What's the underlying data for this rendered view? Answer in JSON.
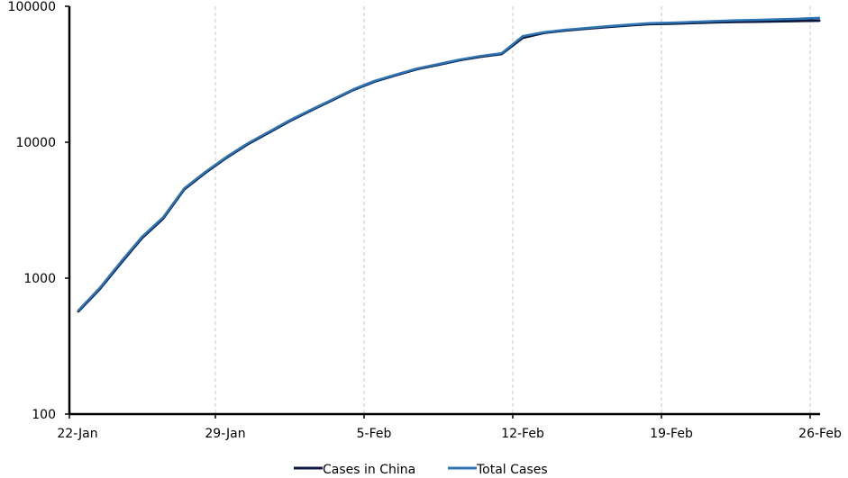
{
  "chart_data": {
    "type": "line",
    "title": "",
    "xlabel": "",
    "ylabel": "",
    "x_axis_type": "date",
    "x": [
      "2020-01-22",
      "2020-01-23",
      "2020-01-24",
      "2020-01-25",
      "2020-01-26",
      "2020-01-27",
      "2020-01-28",
      "2020-01-29",
      "2020-01-30",
      "2020-01-31",
      "2020-02-01",
      "2020-02-02",
      "2020-02-03",
      "2020-02-04",
      "2020-02-05",
      "2020-02-06",
      "2020-02-07",
      "2020-02-08",
      "2020-02-09",
      "2020-02-10",
      "2020-02-11",
      "2020-02-12",
      "2020-02-13",
      "2020-02-14",
      "2020-02-15",
      "2020-02-16",
      "2020-02-17",
      "2020-02-18",
      "2020-02-19",
      "2020-02-20",
      "2020-02-21",
      "2020-02-22",
      "2020-02-23",
      "2020-02-24",
      "2020-02-25",
      "2020-02-26"
    ],
    "x_tick_labels": [
      "22-Jan",
      "29-Jan",
      "5-Feb",
      "12-Feb",
      "19-Feb",
      "26-Feb"
    ],
    "y_scale": "log",
    "ylim": [
      100,
      100000
    ],
    "y_tick_labels": [
      "100",
      "1000",
      "10000",
      "100000"
    ],
    "grid": {
      "vertical": true,
      "horizontal": false
    },
    "legend_position": "bottom",
    "series": [
      {
        "name": "Cases in China",
        "color": "#0b1a3e",
        "values": [
          571,
          830,
          1287,
          1975,
          2744,
          4515,
          5974,
          7711,
          9692,
          11791,
          14380,
          17205,
          20438,
          24324,
          28018,
          31161,
          34546,
          37198,
          40171,
          42638,
          44653,
          58761,
          63851,
          66492,
          68500,
          70548,
          72436,
          74185,
          74576,
          75465,
          76288,
          76936,
          77150,
          77658,
          78064,
          78497
        ]
      },
      {
        "name": "Total Cases",
        "color": "#2e75b6",
        "values": [
          580,
          845,
          1317,
          2015,
          2800,
          4581,
          6058,
          7813,
          9823,
          11950,
          14553,
          17391,
          20630,
          24554,
          28276,
          31481,
          34886,
          37558,
          40554,
          43103,
          45171,
          60381,
          64543,
          67103,
          69265,
          71332,
          73327,
          75191,
          75723,
          76719,
          77804,
          78812,
          79339,
          80132,
          80995,
          82101
        ]
      }
    ]
  }
}
